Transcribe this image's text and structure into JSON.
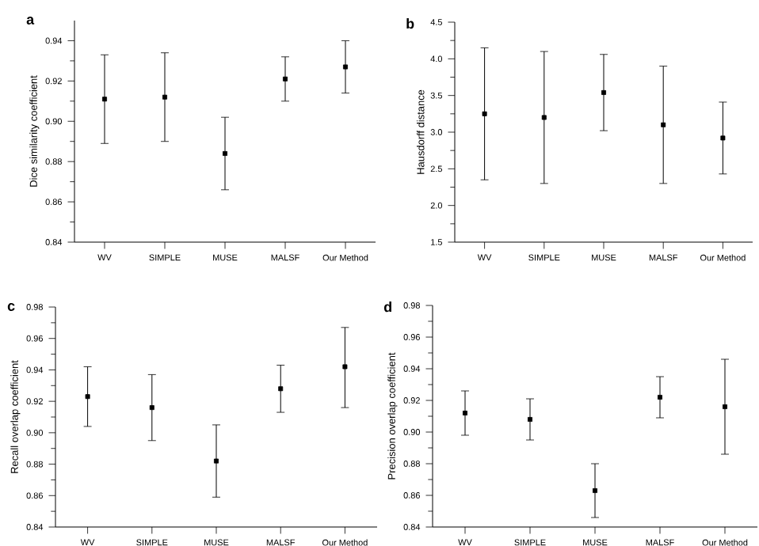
{
  "chart_data": [
    {
      "type": "scatter",
      "title": "a",
      "ylabel": "Dice similarity coefficient",
      "categories": [
        "WV",
        "SIMPLE",
        "MUSE",
        "MALSF",
        "Our Method"
      ],
      "values": [
        0.911,
        0.912,
        0.884,
        0.921,
        0.927
      ],
      "errors": [
        [
          0.889,
          0.933
        ],
        [
          0.89,
          0.934
        ],
        [
          0.866,
          0.902
        ],
        [
          0.91,
          0.932
        ],
        [
          0.914,
          0.94
        ]
      ],
      "color": "#000000",
      "marker": "square",
      "ylim": [
        0.84,
        0.95
      ],
      "yticks": [
        {
          "value": 0.84,
          "label": "0.84"
        },
        {
          "value": 0.86,
          "label": "0.86"
        },
        {
          "value": 0.88,
          "label": "0.88"
        },
        {
          "value": 0.9,
          "label": "0.90"
        },
        {
          "value": 0.92,
          "label": "0.92"
        },
        {
          "value": 0.94,
          "label": "0.94"
        }
      ]
    },
    {
      "type": "scatter",
      "title": "b",
      "ylabel": "Hausdorff distance",
      "categories": [
        "WV",
        "SIMPLE",
        "MUSE",
        "MALSF",
        "Our Method"
      ],
      "values": [
        3.25,
        3.2,
        3.54,
        3.1,
        2.92
      ],
      "errors": [
        [
          2.35,
          4.15
        ],
        [
          2.3,
          4.1
        ],
        [
          3.02,
          4.06
        ],
        [
          2.3,
          3.9
        ],
        [
          2.43,
          3.41
        ]
      ],
      "color": "#000000",
      "marker": "square",
      "ylim": [
        1.5,
        4.5
      ],
      "yticks": [
        {
          "value": 1.5,
          "label": "1.5"
        },
        {
          "value": 2,
          "label": "2.0"
        },
        {
          "value": 2.5,
          "label": "2.5"
        },
        {
          "value": 3,
          "label": "3.0"
        },
        {
          "value": 3.5,
          "label": "3.5"
        },
        {
          "value": 4,
          "label": "4.0"
        },
        {
          "value": 4.5,
          "label": "4.5"
        }
      ]
    },
    {
      "type": "scatter",
      "title": "c",
      "ylabel": "Recall overlap coefficient",
      "categories": [
        "WV",
        "SIMPLE",
        "MUSE",
        "MALSF",
        "Our Method"
      ],
      "values": [
        0.923,
        0.916,
        0.882,
        0.928,
        0.942
      ],
      "errors": [
        [
          0.904,
          0.942
        ],
        [
          0.895,
          0.937
        ],
        [
          0.859,
          0.905
        ],
        [
          0.913,
          0.943
        ],
        [
          0.916,
          0.967
        ]
      ],
      "color": "#000000",
      "marker": "square",
      "ylim": [
        0.84,
        0.98
      ],
      "yticks": [
        {
          "value": 0.84,
          "label": "0.84"
        },
        {
          "value": 0.86,
          "label": "0.86"
        },
        {
          "value": 0.88,
          "label": "0.88"
        },
        {
          "value": 0.9,
          "label": "0.90"
        },
        {
          "value": 0.92,
          "label": "0.92"
        },
        {
          "value": 0.94,
          "label": "0.94"
        },
        {
          "value": 0.96,
          "label": "0.96"
        },
        {
          "value": 0.98,
          "label": "0.98"
        }
      ]
    },
    {
      "type": "scatter",
      "title": "d",
      "ylabel": "Precision overlap coefficient",
      "categories": [
        "WV",
        "SIMPLE",
        "MUSE",
        "MALSF",
        "Our Method"
      ],
      "values": [
        0.912,
        0.908,
        0.863,
        0.922,
        0.916
      ],
      "errors": [
        [
          0.898,
          0.926
        ],
        [
          0.895,
          0.921
        ],
        [
          0.846,
          0.88
        ],
        [
          0.909,
          0.935
        ],
        [
          0.886,
          0.946
        ]
      ],
      "color": "#000000",
      "marker": "square",
      "ylim": [
        0.84,
        0.98
      ],
      "yticks": [
        {
          "value": 0.84,
          "label": "0.84"
        },
        {
          "value": 0.86,
          "label": "0.86"
        },
        {
          "value": 0.88,
          "label": "0.88"
        },
        {
          "value": 0.9,
          "label": "0.90"
        },
        {
          "value": 0.92,
          "label": "0.92"
        },
        {
          "value": 0.94,
          "label": "0.94"
        },
        {
          "value": 0.96,
          "label": "0.96"
        },
        {
          "value": 0.98,
          "label": "0.98"
        }
      ]
    }
  ]
}
